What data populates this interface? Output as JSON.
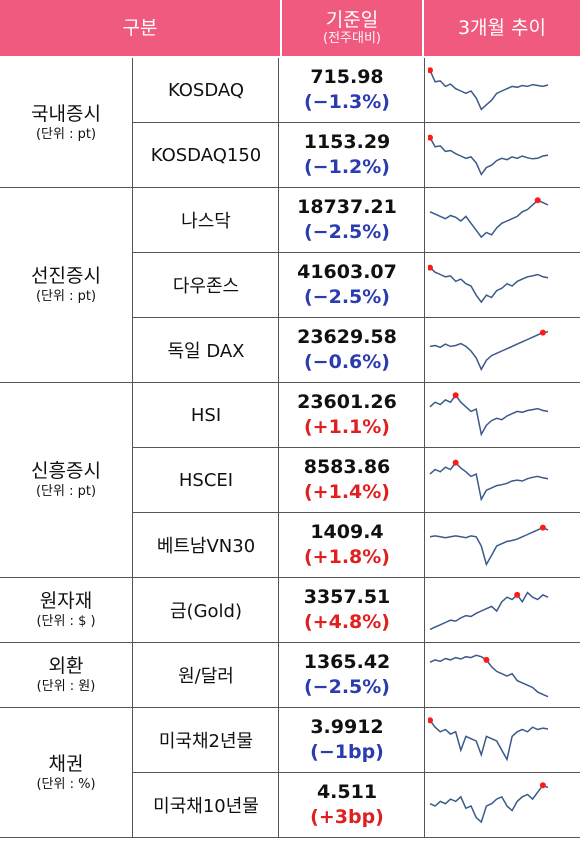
{
  "header": {
    "category": "구분",
    "base_date": "기준일",
    "base_note": "(전주대비)",
    "trend": "3개월 추이"
  },
  "colors": {
    "header_bg": "#f05a7e",
    "down": "#2b3bb0",
    "up": "#e02020",
    "line": "#3a5a8a",
    "marker": "#ff1a1a"
  },
  "groups": [
    {
      "name": "국내증시",
      "unit": "(단위 : pt)"
    },
    {
      "name": "선진증시",
      "unit": "(단위 : pt)"
    },
    {
      "name": "신흥증시",
      "unit": "(단위 : pt)"
    },
    {
      "name": "원자재",
      "unit": "(단위 : $ )"
    },
    {
      "name": "외환",
      "unit": "(단위 : 원)"
    },
    {
      "name": "채권",
      "unit": "(단위 : %)"
    }
  ],
  "rows": [
    {
      "name": "KOSDAQ",
      "value": "715.98",
      "change": "(−1.3%)",
      "dir": "down",
      "trend": [
        0.95,
        0.7,
        0.72,
        0.6,
        0.65,
        0.55,
        0.5,
        0.45,
        0.5,
        0.35,
        0.1,
        0.2,
        0.3,
        0.45,
        0.5,
        0.55,
        0.6,
        0.58,
        0.62,
        0.6,
        0.64,
        0.62,
        0.6,
        0.63
      ],
      "marker": 0
    },
    {
      "name": "KOSDAQ150",
      "value": "1153.29",
      "change": "(−1.2%)",
      "dir": "down",
      "trend": [
        0.9,
        0.7,
        0.72,
        0.6,
        0.62,
        0.55,
        0.5,
        0.45,
        0.48,
        0.35,
        0.1,
        0.25,
        0.3,
        0.4,
        0.45,
        0.42,
        0.48,
        0.45,
        0.5,
        0.46,
        0.44,
        0.45,
        0.5,
        0.52
      ],
      "marker": 0
    },
    {
      "name": "나스닥",
      "value": "18737.21",
      "change": "(−2.5%)",
      "dir": "down",
      "trend": [
        0.7,
        0.65,
        0.6,
        0.55,
        0.62,
        0.58,
        0.5,
        0.6,
        0.45,
        0.3,
        0.15,
        0.25,
        0.2,
        0.35,
        0.45,
        0.5,
        0.55,
        0.6,
        0.7,
        0.75,
        0.85,
        0.95,
        0.9,
        0.85
      ],
      "marker": 21
    },
    {
      "name": "다우존스",
      "value": "41603.07",
      "change": "(−2.5%)",
      "dir": "down",
      "trend": [
        0.9,
        0.8,
        0.75,
        0.7,
        0.72,
        0.6,
        0.65,
        0.55,
        0.5,
        0.3,
        0.15,
        0.3,
        0.25,
        0.4,
        0.45,
        0.55,
        0.5,
        0.6,
        0.65,
        0.7,
        0.72,
        0.75,
        0.7,
        0.68
      ],
      "marker": 0
    },
    {
      "name": "독일 DAX",
      "value": "23629.58",
      "change": "(−0.6%)",
      "dir": "down",
      "trend": [
        0.6,
        0.62,
        0.58,
        0.65,
        0.6,
        0.62,
        0.66,
        0.6,
        0.5,
        0.35,
        0.1,
        0.3,
        0.4,
        0.45,
        0.5,
        0.55,
        0.6,
        0.65,
        0.7,
        0.75,
        0.8,
        0.85,
        0.9,
        0.92
      ],
      "marker": 22
    },
    {
      "name": "HSI",
      "value": "23601.26",
      "change": "(+1.1%)",
      "dir": "up",
      "trend": [
        0.7,
        0.8,
        0.75,
        0.85,
        0.8,
        0.95,
        0.8,
        0.7,
        0.6,
        0.65,
        0.1,
        0.3,
        0.4,
        0.45,
        0.42,
        0.5,
        0.55,
        0.6,
        0.58,
        0.62,
        0.64,
        0.66,
        0.62,
        0.6
      ],
      "marker": 5
    },
    {
      "name": "HSCEI",
      "value": "8583.86",
      "change": "(+1.4%)",
      "dir": "up",
      "trend": [
        0.65,
        0.75,
        0.7,
        0.8,
        0.75,
        0.9,
        0.78,
        0.7,
        0.6,
        0.65,
        0.1,
        0.3,
        0.35,
        0.4,
        0.42,
        0.45,
        0.5,
        0.52,
        0.5,
        0.55,
        0.58,
        0.6,
        0.57,
        0.55
      ],
      "marker": 5
    },
    {
      "name": "베트남VN30",
      "value": "1409.4",
      "change": "(+1.8%)",
      "dir": "up",
      "trend": [
        0.7,
        0.72,
        0.7,
        0.68,
        0.7,
        0.72,
        0.7,
        0.68,
        0.72,
        0.7,
        0.5,
        0.1,
        0.3,
        0.5,
        0.55,
        0.6,
        0.62,
        0.65,
        0.7,
        0.75,
        0.8,
        0.85,
        0.9,
        0.85
      ],
      "marker": 22
    },
    {
      "name": "금(Gold)",
      "value": "3357.51",
      "change": "(+4.8%)",
      "dir": "up",
      "trend": [
        0.1,
        0.15,
        0.2,
        0.25,
        0.3,
        0.28,
        0.35,
        0.4,
        0.38,
        0.45,
        0.5,
        0.55,
        0.6,
        0.5,
        0.7,
        0.8,
        0.75,
        0.85,
        0.7,
        0.9,
        0.8,
        0.75,
        0.85,
        0.8
      ],
      "marker": 17
    },
    {
      "name": "원/달러",
      "value": "1365.42",
      "change": "(−2.5%)",
      "dir": "down",
      "trend": [
        0.8,
        0.85,
        0.82,
        0.88,
        0.85,
        0.9,
        0.87,
        0.92,
        0.9,
        0.95,
        0.92,
        0.85,
        0.7,
        0.6,
        0.55,
        0.5,
        0.55,
        0.4,
        0.35,
        0.3,
        0.25,
        0.15,
        0.1,
        0.05
      ],
      "marker": 11
    },
    {
      "name": "미국채2년물",
      "value": "3.9912",
      "change": "(−1bp)",
      "dir": "down",
      "trend": [
        0.95,
        0.8,
        0.7,
        0.75,
        0.65,
        0.7,
        0.3,
        0.6,
        0.55,
        0.5,
        0.2,
        0.6,
        0.55,
        0.5,
        0.3,
        0.1,
        0.6,
        0.7,
        0.75,
        0.7,
        0.8,
        0.75,
        0.78,
        0.76
      ],
      "marker": 0
    },
    {
      "name": "미국채10년물",
      "value": "4.511",
      "change": "(+3bp)",
      "dir": "up",
      "trend": [
        0.55,
        0.5,
        0.6,
        0.55,
        0.65,
        0.6,
        0.7,
        0.45,
        0.5,
        0.25,
        0.15,
        0.5,
        0.55,
        0.65,
        0.7,
        0.5,
        0.4,
        0.6,
        0.7,
        0.75,
        0.65,
        0.8,
        0.95,
        0.9
      ],
      "marker": 22
    }
  ]
}
